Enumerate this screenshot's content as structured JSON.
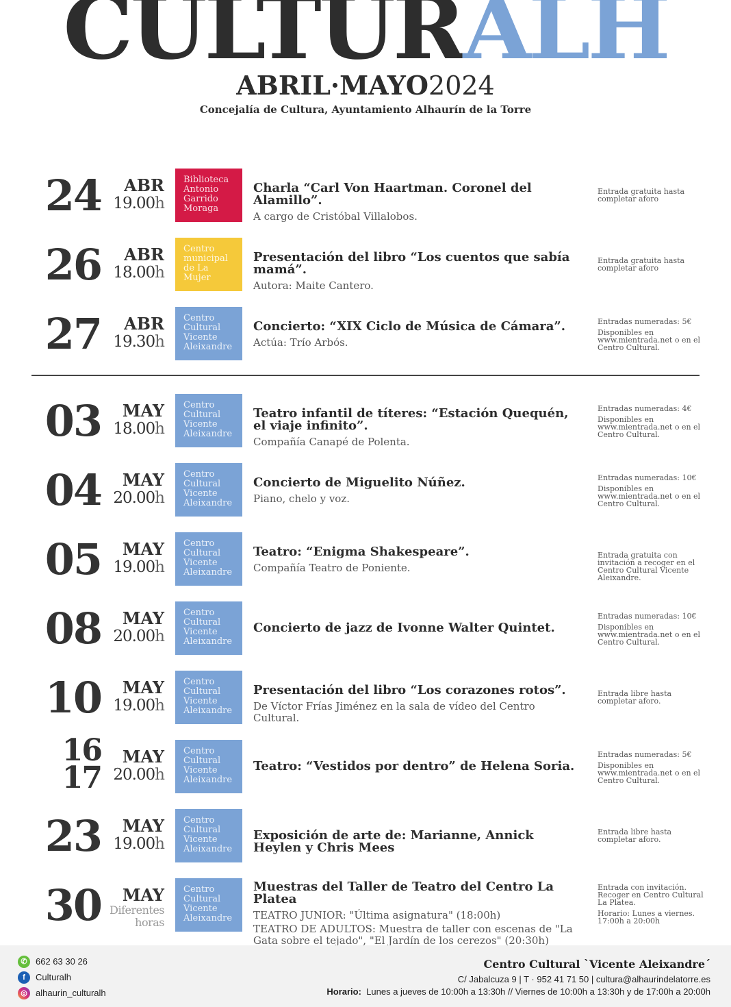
{
  "header": {
    "title_dark": "CULTUR",
    "title_blue": "ALH",
    "period_bold": "ABRIL·MAYO",
    "period_year": "2024",
    "subtitle": "Concejalía de Cultura, Ayuntamiento Alhaurín de la Torre"
  },
  "colors": {
    "red": "#d41a46",
    "yellow": "#f5c93a",
    "blue": "#7ba3d6",
    "dark": "#2d2d2d"
  },
  "events": [
    {
      "day": [
        "24"
      ],
      "month": "ABR",
      "time": "19.00",
      "suffix": "h",
      "venue": [
        "Biblioteca",
        "Antonio",
        "Garrido",
        "Moraga"
      ],
      "venue_color": "red",
      "title": "Charla “Carl Von Haartman. Coronel del Alamillo”.",
      "desc": [
        "A cargo de Cristóbal Villalobos."
      ],
      "info": [
        "Entrada gratuita hasta completar aforo"
      ]
    },
    {
      "day": [
        "26"
      ],
      "month": "ABR",
      "time": "18.00",
      "suffix": "h",
      "venue": [
        "Centro",
        "municipal",
        "de La",
        "Mujer"
      ],
      "venue_color": "yellow",
      "title": "Presentación del libro “Los cuentos que sabía mamá”.",
      "desc": [
        "Autora: Maite Cantero."
      ],
      "info": [
        "Entrada gratuita hasta completar aforo"
      ]
    },
    {
      "day": [
        "27"
      ],
      "month": "ABR",
      "time": "19.30",
      "suffix": "h",
      "venue": [
        "Centro",
        "Cultural",
        "Vicente",
        "Aleixandre"
      ],
      "venue_color": "blue",
      "title": "Concierto: “XIX Ciclo de Música de Cámara”.",
      "desc": [
        "Actúa: Trío Arbós."
      ],
      "info": [
        "Entradas numeradas: 5€",
        "Disponibles en www.mientrada.net o en el Centro Cultural."
      ]
    },
    {
      "day": [
        "03"
      ],
      "month": "MAY",
      "time": "18.00",
      "suffix": "h",
      "venue": [
        "Centro",
        "Cultural",
        "Vicente",
        "Aleixandre"
      ],
      "venue_color": "blue",
      "title": "Teatro infantil de títeres: “Estación Quequén, el viaje infinito”.",
      "desc": [
        "Compañía Canapé de Polenta."
      ],
      "info": [
        "Entradas numeradas: 4€",
        "Disponibles en www.mientrada.net o en el Centro Cultural."
      ]
    },
    {
      "day": [
        "04"
      ],
      "month": "MAY",
      "time": "20.00",
      "suffix": "h",
      "venue": [
        "Centro",
        "Cultural",
        "Vicente",
        "Aleixandre"
      ],
      "venue_color": "blue",
      "title": "Concierto de Miguelito Núñez.",
      "desc": [
        "Piano, chelo y voz."
      ],
      "info": [
        "Entradas numeradas: 10€",
        "Disponibles en www.mientrada.net o en el Centro Cultural."
      ]
    },
    {
      "day": [
        "05"
      ],
      "month": "MAY",
      "time": "19.00",
      "suffix": "h",
      "venue": [
        "Centro",
        "Cultural",
        "Vicente",
        "Aleixandre"
      ],
      "venue_color": "blue",
      "title": "Teatro: “Enigma Shakespeare”.",
      "desc": [
        "Compañía Teatro de Poniente."
      ],
      "info": [
        "Entrada gratuita con invitación a recoger en el Centro Cultural Vicente Aleixandre."
      ]
    },
    {
      "day": [
        "08"
      ],
      "month": "MAY",
      "time": "20.00",
      "suffix": "h",
      "venue": [
        "Centro",
        "Cultural",
        "Vicente",
        "Aleixandre"
      ],
      "venue_color": "blue",
      "title": "Concierto de jazz de Ivonne Walter Quintet.",
      "desc": [],
      "info": [
        "Entradas numeradas: 10€",
        "Disponibles en www.mientrada.net o en el Centro Cultural."
      ]
    },
    {
      "day": [
        "10"
      ],
      "month": "MAY",
      "time": "19.00",
      "suffix": "h",
      "venue": [
        "Centro",
        "Cultural",
        "Vicente",
        "Aleixandre"
      ],
      "venue_color": "blue",
      "title": "Presentación del libro “Los corazones rotos”.",
      "desc": [
        "De Víctor Frías Jiménez en la sala de vídeo del Centro Cultural."
      ],
      "info": [
        "Entrada libre hasta completar aforo."
      ]
    },
    {
      "day": [
        "16",
        "17"
      ],
      "month": "MAY",
      "time": "20.00",
      "suffix": "h",
      "venue": [
        "Centro",
        "Cultural",
        "Vicente",
        "Aleixandre"
      ],
      "venue_color": "blue",
      "title": "Teatro: “Vestidos por dentro” de Helena Soria.",
      "desc": [],
      "info": [
        "Entradas numeradas: 5€",
        "Disponibles en www.mientrada.net o en el Centro Cultural."
      ]
    },
    {
      "day": [
        "23"
      ],
      "month": "MAY",
      "time": "19.00",
      "suffix": "h",
      "venue": [
        "Centro",
        "Cultural",
        "Vicente",
        "Aleixandre"
      ],
      "venue_color": "blue",
      "title": "Exposición de arte de: Marianne, Annick Heylen y Chris Mees",
      "desc": [],
      "info": [
        "Entrada libre hasta completar aforo."
      ]
    },
    {
      "day": [
        "30"
      ],
      "month": "MAY",
      "time": "Diferentes horas",
      "suffix": "",
      "venue": [
        "Centro",
        "Cultural",
        "Vicente",
        "Aleixandre"
      ],
      "venue_color": "blue",
      "title": "Muestras del Taller de Teatro del Centro La Platea",
      "desc": [
        "TEATRO JUNIOR: \"Última asignatura\" (18:00h)",
        "TEATRO DE ADULTOS: Muestra de taller con escenas de \"La Gata sobre el tejado\", \"El Jardín de los cerezos\" (20:30h)"
      ],
      "info": [
        "Entrada con invitación. Recoger en Centro Cultural La Platea.",
        "Horario: Lunes a viernes. 17:00h a 20:00h"
      ]
    }
  ],
  "footer": {
    "whatsapp": "662 63 30 26",
    "facebook": "Culturalh",
    "instagram": "alhaurin_culturalh",
    "center_name": "Centro Cultural `Vicente Aleixandre´",
    "address": "C/ Jabalcuza 9 | T · 952 41 71 50 | cultura@alhaurindelatorre.es",
    "hours_label": "Horario:",
    "hours": "Lunes a jueves de 10:00h a 13:30h  // Viernes de 10:00h a 13:30h y de 17:00h a 20:00h"
  }
}
